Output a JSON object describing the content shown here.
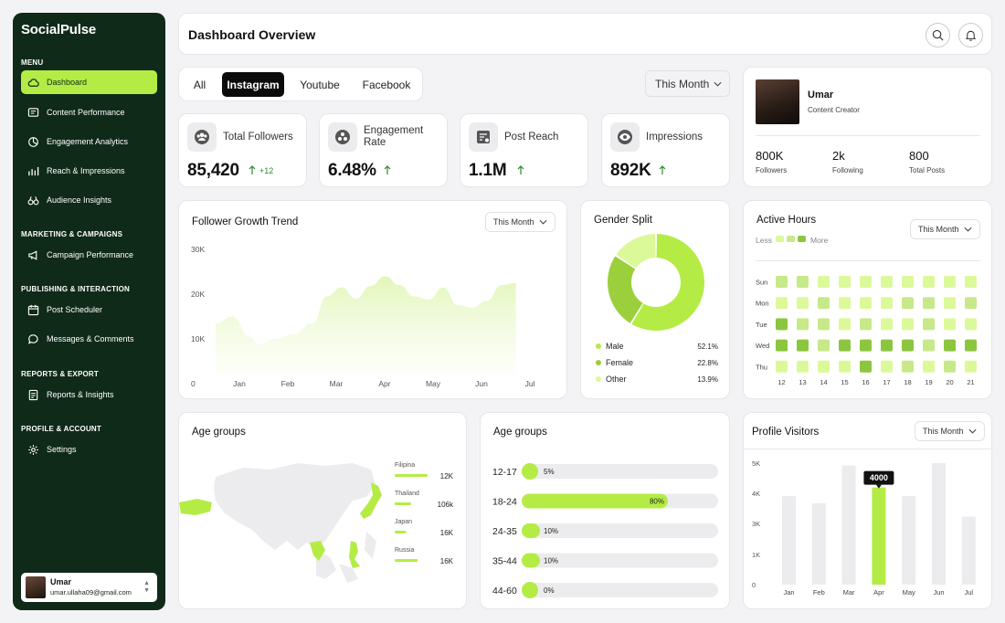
{
  "sidebar": {
    "brand": "SocialPulse",
    "sections": {
      "menu": "MENU",
      "marketing": "MARKETING & CAMPAIGNS",
      "publishing": "PUBLISHING & INTERACTION",
      "reports": "REPORTS & EXPORT",
      "profile": "PROFILE & ACCOUNT"
    },
    "items": [
      {
        "label": "Dashboard",
        "icon": "cloud-icon"
      },
      {
        "label": "Content Performance",
        "icon": "content-icon"
      },
      {
        "label": "Engagement Analytics",
        "icon": "pie-icon"
      },
      {
        "label": "Reach & Impressions",
        "icon": "reach-icon"
      },
      {
        "label": "Audience Insights",
        "icon": "binoculars-icon"
      },
      {
        "label": "Campaign Performance",
        "icon": "megaphone-icon"
      },
      {
        "label": "Post Scheduler",
        "icon": "calendar-icon"
      },
      {
        "label": "Messages & Comments",
        "icon": "chat-icon"
      },
      {
        "label": "Reports & Insights",
        "icon": "report-icon"
      },
      {
        "label": "Settings",
        "icon": "gear-icon"
      }
    ],
    "user": {
      "name": "Umar",
      "email": "umar.ullaha09@gmail.com"
    }
  },
  "header": {
    "title": "Dashboard Overview"
  },
  "tabs": [
    "All",
    "Instagram",
    "Youtube",
    "Facebook"
  ],
  "filter": {
    "period": "This Month"
  },
  "stats": [
    {
      "label": "Total Followers",
      "value": "85,420",
      "delta": "+12",
      "icon": "users-icon"
    },
    {
      "label": "Engagement Rate",
      "value": "6.48%",
      "delta": "",
      "icon": "engagement-icon"
    },
    {
      "label": "Post Reach",
      "value": "1.1M",
      "delta": "",
      "icon": "reach-icon"
    },
    {
      "label": "Impressions",
      "value": "892K",
      "delta": "",
      "icon": "eye-icon"
    }
  ],
  "profile": {
    "name": "Umar",
    "role": "Content Creator",
    "metrics": [
      {
        "value": "800K",
        "label": "Followers"
      },
      {
        "value": "2k",
        "label": "Following"
      },
      {
        "value": "800",
        "label": "Total Posts"
      }
    ]
  },
  "follower_growth": {
    "title": "Follower Growth Trend",
    "period": "This Month"
  },
  "gender": {
    "title": "Gender Split"
  },
  "active_hours": {
    "title": "Active Hours",
    "period": "This Month",
    "less": "Less",
    "more": "More"
  },
  "age_map": {
    "title": "Age groups"
  },
  "age_bars": {
    "title": "Age groups"
  },
  "visitors": {
    "title": "Profile Visitors",
    "period": "This Month"
  },
  "colors": {
    "accent": "#b4ec45",
    "sidebar": "#0f2a19",
    "accent_dark": "#8cc63f"
  },
  "chart_data": [
    {
      "type": "area",
      "id": "follower-growth",
      "title": "Follower Growth Trend",
      "x": [
        "Jan",
        "Feb",
        "Mar",
        "Apr",
        "May",
        "Jun",
        "Jul"
      ],
      "yticks": [
        "30K",
        "20K",
        "10K",
        "0"
      ],
      "ylim": [
        0,
        30000
      ],
      "points": [
        [
          0.0,
          13500
        ],
        [
          0.35,
          15000
        ],
        [
          0.7,
          10500
        ],
        [
          0.9,
          8700
        ],
        [
          1.2,
          10000
        ],
        [
          1.6,
          11000
        ],
        [
          2.0,
          13500
        ],
        [
          2.3,
          19500
        ],
        [
          2.6,
          21500
        ],
        [
          2.9,
          19000
        ],
        [
          3.2,
          21800
        ],
        [
          3.5,
          24000
        ],
        [
          3.8,
          22000
        ],
        [
          4.1,
          19500
        ],
        [
          4.4,
          18800
        ],
        [
          4.7,
          21500
        ],
        [
          5.0,
          17500
        ],
        [
          5.3,
          17000
        ],
        [
          5.6,
          18500
        ],
        [
          5.9,
          22000
        ],
        [
          6.2,
          22500
        ]
      ],
      "grid": false
    },
    {
      "type": "pie",
      "id": "gender-split",
      "slices": [
        {
          "label": "Male",
          "value": 52.1,
          "display": "52.1%",
          "color": "#b4ec45"
        },
        {
          "label": "Female",
          "value": 22.8,
          "display": "22.8%",
          "color": "#9ccf3c"
        },
        {
          "label": "Other",
          "value": 13.9,
          "display": "13.9%",
          "color": "#dcf99a"
        }
      ]
    },
    {
      "type": "heatmap",
      "id": "active-hours",
      "rows": [
        "Sun",
        "Mon",
        "Tue",
        "Wed",
        "Thu"
      ],
      "cols": [
        "12",
        "13",
        "14",
        "15",
        "16",
        "17",
        "18",
        "19",
        "20",
        "21"
      ],
      "levels": [
        [
          2,
          2,
          1,
          1,
          1,
          1,
          1,
          1,
          1,
          1
        ],
        [
          1,
          1,
          2,
          1,
          1,
          1,
          2,
          2,
          1,
          2
        ],
        [
          3,
          2,
          2,
          1,
          2,
          1,
          1,
          2,
          1,
          1
        ],
        [
          3,
          3,
          2,
          3,
          3,
          3,
          3,
          2,
          3,
          3
        ],
        [
          1,
          1,
          1,
          1,
          3,
          1,
          2,
          1,
          2,
          1
        ]
      ],
      "palette": [
        "#eef9d4",
        "#dcf99a",
        "#c7e98a",
        "#8cc63f"
      ]
    },
    {
      "type": "bar",
      "id": "country-bars",
      "categories": [
        "Filipina",
        "Thailand",
        "Japan",
        "Russia"
      ],
      "labels": [
        "12K",
        "106k",
        "16K",
        "16K"
      ],
      "fill": [
        1.0,
        0.5,
        0.35,
        0.7
      ]
    },
    {
      "type": "bar",
      "id": "age-groups",
      "categories": [
        "12-17",
        "18-24",
        "24-35",
        "35-44",
        "44-60"
      ],
      "values": [
        5,
        80,
        10,
        10,
        0
      ],
      "labels": [
        "5%",
        "80%",
        "10%",
        "10%",
        "0%"
      ]
    },
    {
      "type": "bar",
      "id": "profile-visitors",
      "categories": [
        "Jan",
        "Feb",
        "Mar",
        "Apr",
        "May",
        "Jun",
        "Jul"
      ],
      "values": [
        3650,
        3350,
        4900,
        4000,
        3650,
        5000,
        2800
      ],
      "highlight": "Apr",
      "highlight_label": "4000",
      "yticks": [
        "5K",
        "4K",
        "3K",
        "1K",
        "0"
      ],
      "ylim": [
        0,
        5000
      ]
    }
  ]
}
